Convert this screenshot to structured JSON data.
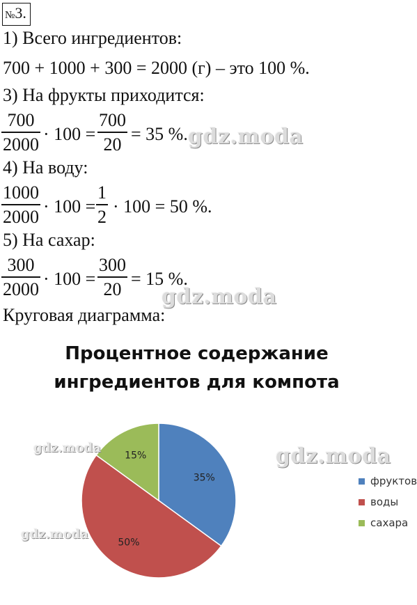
{
  "task_number": "3.",
  "task_number_sign": "№",
  "lines": {
    "l1": "1) Всего ингредиентов:",
    "l2": "700 + 1000 + 300 = 2000 (г) – это 100 %.",
    "l3": "3) На фрукты приходится:",
    "l4": "4) На воду:",
    "l5": "5) На сахар:",
    "l6": "Круговая диаграмма:"
  },
  "calc_fruit": {
    "n1": "700",
    "d1": "2000",
    "mid": "· 100 =",
    "n2": "700",
    "d2": "20",
    "result": "= 35 %."
  },
  "calc_water": {
    "n1": "1000",
    "d1": "2000",
    "mid": "· 100 =",
    "n2": "1",
    "d2": "2",
    "result": "· 100 = 50 %."
  },
  "calc_sugar": {
    "n1": "300",
    "d1": "2000",
    "mid": "· 100 =",
    "n2": "300",
    "d2": "20",
    "result": "= 15 %."
  },
  "watermark": "gdz.moda",
  "chart_data": {
    "type": "pie",
    "title_line1": "Процентное содержание",
    "title_line2": "ингредиентов для компота",
    "slices": [
      {
        "label": "фруктов",
        "value": 35,
        "data_label": "35%",
        "color": "#4f81bd"
      },
      {
        "label": "воды",
        "value": 50,
        "data_label": "50%",
        "color": "#c0504d"
      },
      {
        "label": "сахара",
        "value": 15,
        "data_label": "15%",
        "color": "#9bbb59"
      }
    ],
    "legend_position": "right"
  }
}
